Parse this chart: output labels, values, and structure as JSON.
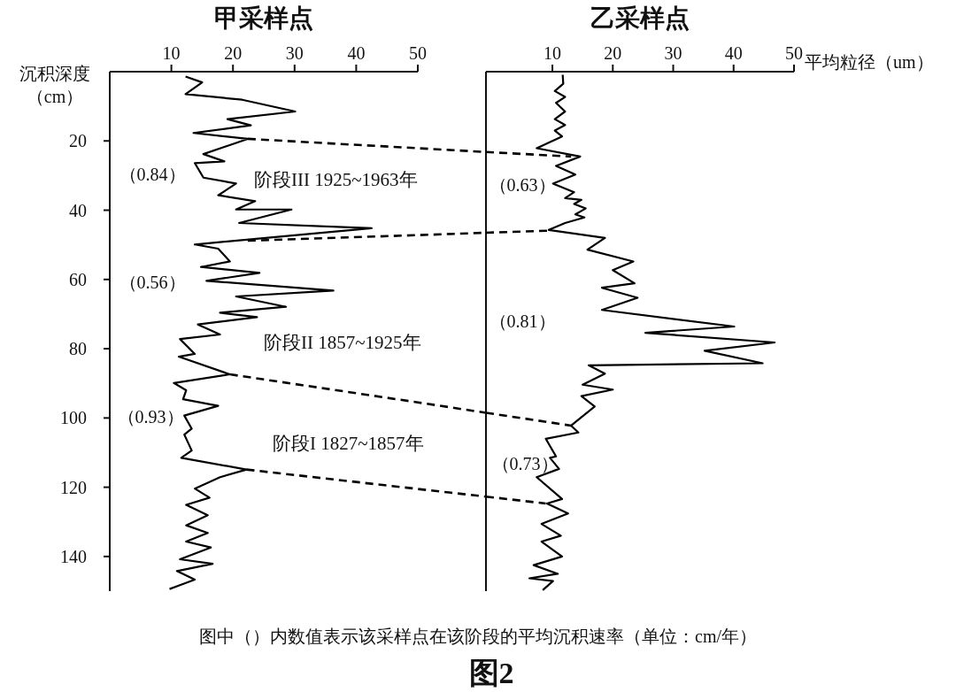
{
  "chart_data": [
    {
      "type": "line",
      "title": "甲采样点",
      "ylabel": "沉积深度（cm）",
      "xlim": [
        0,
        50
      ],
      "xticks": [
        10,
        20,
        30,
        40,
        50
      ],
      "ylim": [
        150,
        0
      ],
      "yticks": [
        20,
        40,
        60,
        80,
        100,
        120,
        140
      ],
      "series": [
        {
          "color": "#000000",
          "line_style": "solid",
          "x": [
            12.3,
            15.0,
            12.3,
            21.5,
            30.1,
            19.1,
            22.9,
            13.6,
            22.4,
            15.2,
            18.6,
            13.8,
            15.2,
            20.5,
            17.6,
            23.6,
            20.5,
            29.5,
            21.0,
            42.5,
            13.8,
            17.6,
            19.5,
            14.8,
            24.3,
            15.7,
            36.3,
            20.5,
            28.6,
            17.9,
            23.9,
            14.3,
            17.9,
            11.4,
            13.8,
            11.2,
            19.5,
            10.4,
            12.4,
            11.9,
            17.6,
            12.1,
            13.3,
            12.1,
            13.3,
            11.6,
            22.2,
            17.9,
            13.8,
            16.2,
            12.4,
            15.9,
            12.4,
            15.9,
            12.4,
            16.4,
            11.4,
            16.7,
            10.9,
            13.8,
            11.2,
            9.7
          ],
          "values": [
            1.4,
            3.1,
            6.5,
            8.1,
            11.5,
            13.7,
            15.5,
            17.7,
            19.4,
            23.8,
            25.9,
            26.4,
            30.6,
            32.3,
            35.7,
            37.4,
            39.8,
            39.8,
            43.7,
            45.2,
            49.9,
            51.1,
            54.8,
            56.4,
            58.1,
            60.4,
            63.2,
            64.9,
            67.9,
            69.6,
            70.9,
            73.0,
            75.9,
            77.2,
            81.5,
            82.3,
            87.4,
            89.9,
            92.0,
            94.6,
            96.5,
            99.3,
            103.1,
            104.8,
            109.4,
            111.5,
            114.9,
            117.1,
            120.4,
            123.0,
            125.1,
            128.1,
            131.0,
            133.2,
            135.7,
            137.4,
            140.8,
            142.1,
            144.2,
            146.7,
            148.4,
            149.4
          ]
        },
        {
          "color": "#000000",
          "line_style": "dashed",
          "x": [
            22.4,
            50
          ],
          "values": [
            19.4,
            22.1
          ]
        },
        {
          "color": "#000000",
          "line_style": "dashed",
          "x": [
            22.4,
            50
          ],
          "values": [
            48.8,
            47.2
          ]
        },
        {
          "color": "#000000",
          "line_style": "dashed",
          "x": [
            19.5,
            50
          ],
          "values": [
            87.4,
            95.5
          ]
        },
        {
          "color": "#000000",
          "line_style": "dashed",
          "x": [
            22.2,
            50
          ],
          "values": [
            114.9,
            120.5
          ]
        }
      ],
      "annotations": [
        "（0.84）",
        "（0.56）",
        "（0.93）",
        "阶段III 1925~1963年",
        "阶段II 1857~1925年",
        "阶段I 1827~1857年",
        "图中（）内数值表示该采样点在该阶段的平均沉积速率（单位：cm/年）",
        "图2"
      ]
    },
    {
      "type": "line",
      "title": "乙采样点",
      "xlabel": "平均粒径（um）",
      "xlim": [
        -1,
        50
      ],
      "xticks": [
        10,
        20,
        30,
        40,
        50
      ],
      "ylim": [
        150,
        0
      ],
      "tick_labels": "x",
      "series": [
        {
          "color": "#000000",
          "line_style": "solid",
          "x": [
            11.7,
            11.8,
            10.4,
            12.1,
            10.6,
            12.1,
            10.4,
            12.1,
            10.4,
            11.6,
            7.4,
            14.6,
            10.6,
            13.8,
            10.1,
            13.6,
            12.1,
            14.8,
            13.6,
            15.5,
            13.8,
            15.3,
            12.1,
            9.4,
            18.7,
            15.8,
            23.4,
            20.0,
            23.6,
            18.2,
            24.1,
            18.2,
            40.1,
            25.4,
            46.8,
            35.2,
            44.8,
            16.0,
            18.7,
            15.0,
            20.0,
            14.8,
            17.0,
            13.1,
            14.3,
            8.9,
            10.6,
            9.6,
            11.1,
            7.4,
            11.6,
            9.1,
            12.6,
            8.2,
            11.4,
            8.2,
            11.6,
            6.9,
            10.9,
            6.2,
            10.1,
            8.4
          ],
          "values": [
            0.9,
            3.5,
            5.6,
            7.3,
            9.0,
            11.5,
            13.7,
            15.4,
            17.0,
            18.7,
            22.1,
            24.5,
            27.2,
            29.7,
            32.3,
            34.8,
            36.5,
            37.0,
            38.2,
            39.5,
            41.2,
            42.1,
            43.7,
            45.7,
            48.0,
            51.4,
            54.8,
            57.3,
            61.1,
            62.4,
            65.3,
            68.8,
            73.6,
            75.4,
            78.2,
            80.6,
            84.2,
            84.8,
            87.2,
            90.4,
            91.8,
            93.7,
            96.7,
            102.2,
            104.2,
            106.0,
            111.1,
            111.5,
            114.7,
            117.1,
            123.4,
            124.7,
            127.6,
            130.6,
            134.0,
            135.7,
            140.0,
            142.5,
            145.0,
            146.3,
            147.1,
            149.7
          ]
        },
        {
          "color": "#000000",
          "line_style": "dashed",
          "x": [
            -1,
            13.1
          ],
          "values": [
            23.2,
            24.5
          ]
        },
        {
          "color": "#000000",
          "line_style": "dashed",
          "x": [
            -1,
            9.4
          ],
          "values": [
            46.5,
            45.9
          ]
        },
        {
          "color": "#000000",
          "line_style": "dashed",
          "x": [
            -1,
            13.1
          ],
          "values": [
            98.5,
            102.2
          ]
        },
        {
          "color": "#000000",
          "line_style": "dashed",
          "x": [
            -1,
            8.9
          ],
          "values": [
            122.7,
            124.7
          ]
        }
      ],
      "annotations": [
        "（0.63）",
        "（0.81）",
        "（0.73）"
      ]
    }
  ]
}
